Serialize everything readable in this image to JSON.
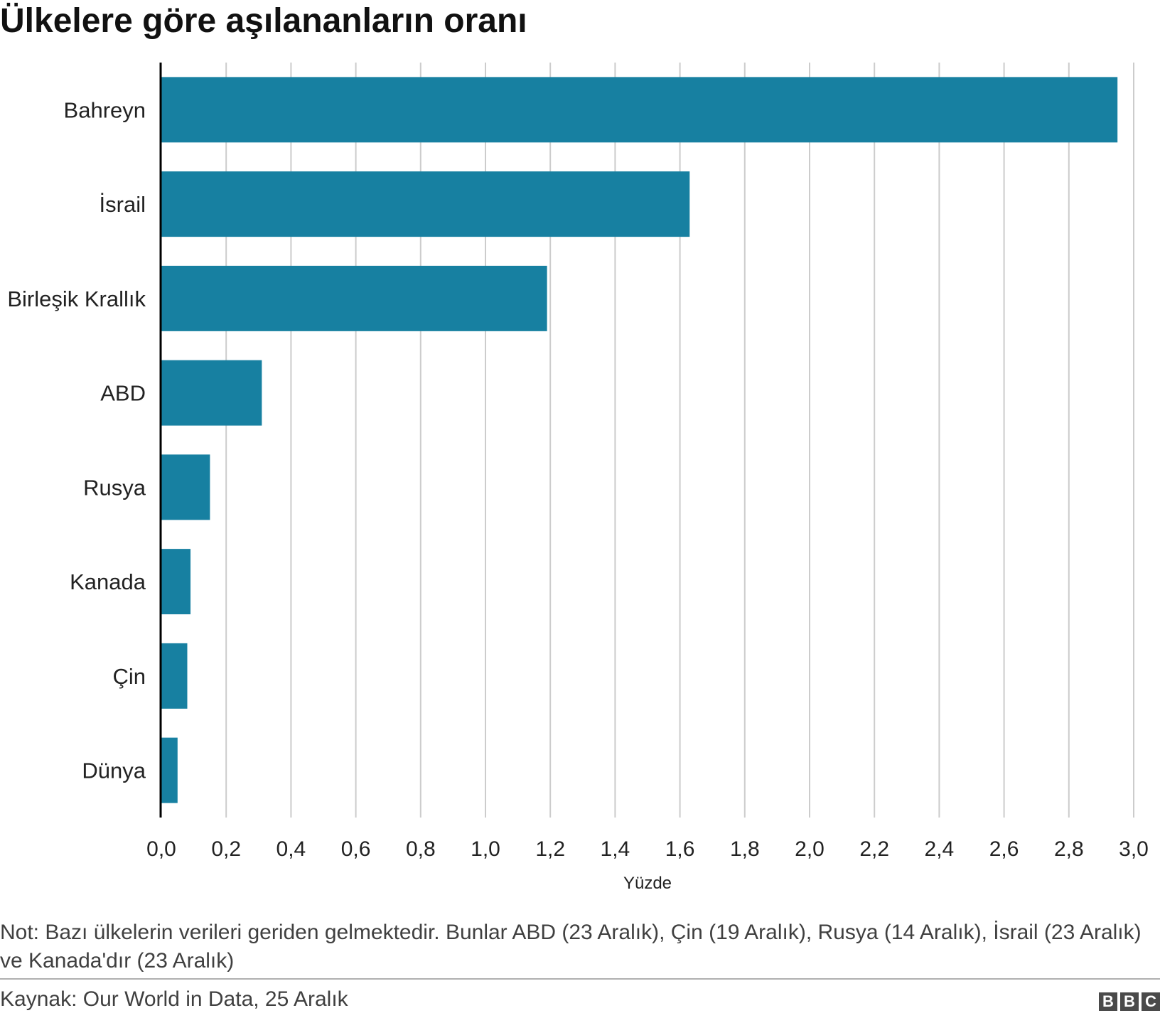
{
  "chart_data": {
    "type": "bar",
    "orientation": "horizontal",
    "title": "Ülkelere göre aşılananların oranı",
    "xlabel": "Yüzde",
    "ylabel": "",
    "categories": [
      "Bahreyn",
      "İsrail",
      "Birleşik Krallık",
      "ABD",
      "Rusya",
      "Kanada",
      "Çin",
      "Dünya"
    ],
    "values": [
      2.95,
      1.63,
      1.19,
      0.31,
      0.15,
      0.09,
      0.08,
      0.05
    ],
    "xlim": [
      0,
      3.0
    ],
    "xticks": [
      "0,0",
      "0,2",
      "0,4",
      "0,6",
      "0,8",
      "1,0",
      "1,2",
      "1,4",
      "1,6",
      "1,8",
      "2,0",
      "2,2",
      "2,4",
      "2,6",
      "2,8",
      "3,0"
    ],
    "grid": true,
    "bar_color": "#1780a1"
  },
  "note": "Not: Bazı ülkelerin verileri geriden gelmektedir. Bunlar ABD (23 Aralık), Çin (19 Aralık), Rusya (14 Aralık), İsrail (23 Aralık) ve Kanada'dır (23 Aralık)",
  "source": "Kaynak: Our World in Data, 25 Aralık",
  "logo": {
    "letters": [
      "B",
      "B",
      "C"
    ]
  }
}
